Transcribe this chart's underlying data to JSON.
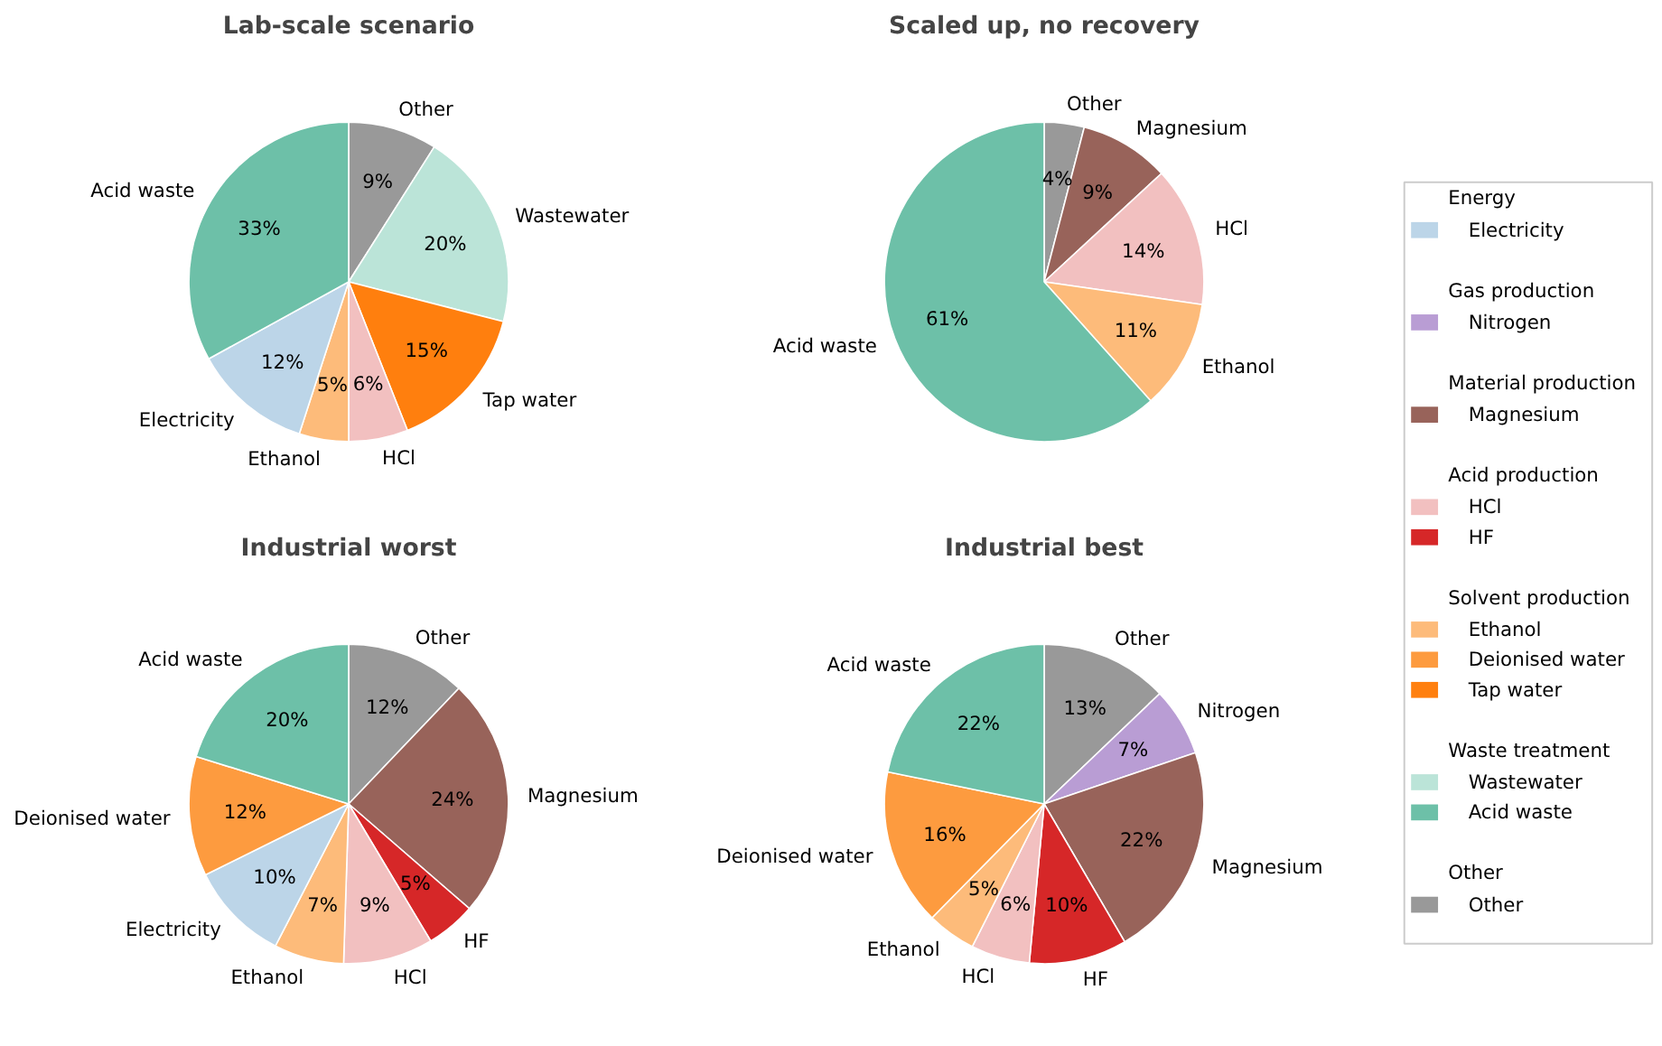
{
  "chart_data": [
    {
      "type": "pie",
      "title": "Lab-scale scenario",
      "categories": [
        "Other",
        "Wastewater",
        "Tap water",
        "HCl",
        "Ethanol",
        "Electricity",
        "Acid waste"
      ],
      "values": [
        9,
        20,
        15,
        6,
        5,
        12,
        33
      ],
      "colors": [
        "#999999",
        "#bbe4d8",
        "#ff7f0e",
        "#f2c0c0",
        "#fdbb7a",
        "#bcd5e8",
        "#6dc0a8"
      ],
      "value_labels": [
        "9%",
        "20%",
        "15%",
        "6%",
        "5%",
        "12%",
        "33%"
      ]
    },
    {
      "type": "pie",
      "title": "Scaled up, no recovery",
      "categories": [
        "Other",
        "Magnesium",
        "HCl",
        "Ethanol",
        "Acid waste"
      ],
      "values": [
        4,
        9,
        14,
        11,
        61
      ],
      "colors": [
        "#999999",
        "#98635a",
        "#f2c0c0",
        "#fdbb7a",
        "#6dc0a8"
      ],
      "value_labels": [
        "4%",
        "9%",
        "14%",
        "11%",
        "61%"
      ]
    },
    {
      "type": "pie",
      "title": "Industrial worst",
      "categories": [
        "Other",
        "Magnesium",
        "HF",
        "HCl",
        "Ethanol",
        "Electricity",
        "Deionised water",
        "Acid waste"
      ],
      "values": [
        12,
        24,
        5,
        9,
        7,
        10,
        12,
        20
      ],
      "colors": [
        "#999999",
        "#98635a",
        "#d62728",
        "#f2c0c0",
        "#fdbb7a",
        "#bcd5e8",
        "#fd9b3f",
        "#6dc0a8"
      ],
      "value_labels": [
        "12%",
        "24%",
        "5%",
        "9%",
        "7%",
        "10%",
        "12%",
        "20%"
      ]
    },
    {
      "type": "pie",
      "title": "Industrial best",
      "categories": [
        "Other",
        "Nitrogen",
        "Magnesium",
        "HF",
        "HCl",
        "Ethanol",
        "Deionised water",
        "Acid waste"
      ],
      "values": [
        13,
        7,
        22,
        10,
        6,
        5,
        16,
        22
      ],
      "colors": [
        "#999999",
        "#b99dd4",
        "#98635a",
        "#d62728",
        "#f2c0c0",
        "#fdbb7a",
        "#fd9b3f",
        "#6dc0a8"
      ],
      "value_labels": [
        "13%",
        "7%",
        "22%",
        "10%",
        "6%",
        "5%",
        "16%",
        "22%"
      ]
    },
    {
      "type": "other",
      "series": [
        {
          "name": "Energy"
        },
        {
          "name": "Electricity",
          "color": "#bcd5e8"
        },
        {
          "name": "Gas production"
        },
        {
          "name": "Nitrogen",
          "color": "#b99dd4"
        },
        {
          "name": "Material production"
        },
        {
          "name": "Magnesium",
          "color": "#98635a"
        },
        {
          "name": "Acid production"
        },
        {
          "name": "HCl",
          "color": "#f2c0c0"
        },
        {
          "name": "HF",
          "color": "#d62728"
        },
        {
          "name": "Solvent production"
        },
        {
          "name": "Ethanol",
          "color": "#fdbb7a"
        },
        {
          "name": "Deionised water",
          "color": "#fd9b3f"
        },
        {
          "name": "Tap water",
          "color": "#ff7f0e"
        },
        {
          "name": "Waste treatment"
        },
        {
          "name": "Wastewater",
          "color": "#bbe4d8"
        },
        {
          "name": "Acid waste",
          "color": "#6dc0a8"
        },
        {
          "name": "Other"
        },
        {
          "name": "Other",
          "color": "#999999"
        }
      ]
    }
  ]
}
